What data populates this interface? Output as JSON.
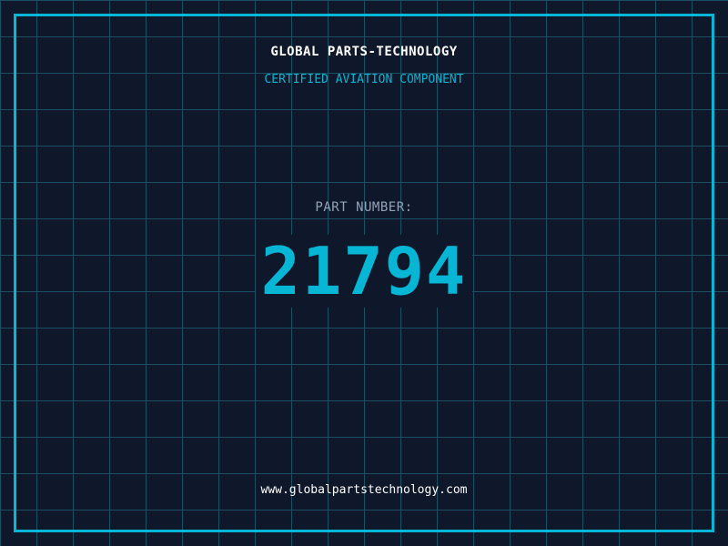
{
  "brand": "GLOBAL PARTS-TECHNOLOGY",
  "subtitle": "CERTIFIED AVIATION COMPONENT",
  "part_label": "PART NUMBER:",
  "part_number": "21794",
  "url": "www.globalpartstechnology.com",
  "colors": {
    "background": "#0f172a",
    "accent": "#06b6d4",
    "grid": "#1b5062"
  }
}
